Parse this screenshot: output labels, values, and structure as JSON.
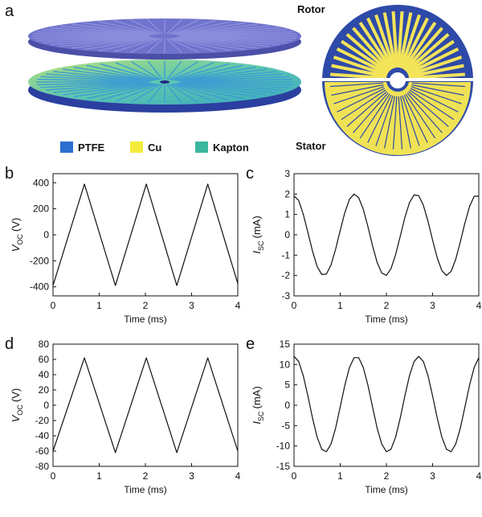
{
  "panel_a": {
    "label": "a",
    "legend": [
      "PTFE",
      "Cu",
      "Kapton"
    ],
    "rotor": "Rotor",
    "stator": "Stator"
  },
  "chart_data": [
    {
      "type": "line",
      "panel_label": "b",
      "xlabel": "Time (ms)",
      "ylabel": {
        "symbol": "V",
        "subscript": "OC",
        "unit": "(V)"
      },
      "color": "#111",
      "x": [
        0,
        0.68,
        1.35,
        2.02,
        2.68,
        3.35,
        4.0
      ],
      "values": [
        -390,
        390,
        -390,
        390,
        -390,
        390,
        -375
      ],
      "xlim": [
        0,
        4
      ],
      "xticks": [
        0,
        1,
        2,
        3,
        4
      ],
      "ylim": [
        -470,
        470
      ],
      "yticks": [
        -400,
        -200,
        0,
        200,
        400
      ]
    },
    {
      "type": "line",
      "panel_label": "c",
      "xlabel": "Time (ms)",
      "ylabel": {
        "symbol": "I",
        "subscript": "SC",
        "unit": "(mA)"
      },
      "color": "#111",
      "x": [
        0,
        0.1,
        0.2,
        0.3,
        0.4,
        0.5,
        0.6,
        0.7,
        0.8,
        0.9,
        1.0,
        1.1,
        1.2,
        1.3,
        1.4,
        1.5,
        1.6,
        1.7,
        1.8,
        1.9,
        2.0,
        2.1,
        2.2,
        2.3,
        2.4,
        2.5,
        2.6,
        2.7,
        2.8,
        2.9,
        3.0,
        3.1,
        3.2,
        3.3,
        3.4,
        3.5,
        3.6,
        3.7,
        3.8,
        3.9,
        4.0
      ],
      "values": [
        1.9,
        1.69,
        1.01,
        0.12,
        -0.8,
        -1.55,
        -1.95,
        -1.93,
        -1.49,
        -0.71,
        0.21,
        1.09,
        1.74,
        2.0,
        1.82,
        1.25,
        0.4,
        -0.54,
        -1.36,
        -1.88,
        -1.99,
        -1.66,
        -0.97,
        -0.07,
        0.85,
        1.58,
        1.96,
        1.92,
        1.45,
        0.67,
        -0.26,
        -1.13,
        -1.76,
        -2.0,
        -1.8,
        -1.21,
        -0.35,
        0.58,
        1.39,
        1.89,
        1.9
      ],
      "xlim": [
        0,
        4
      ],
      "xticks": [
        0,
        1,
        2,
        3,
        4
      ],
      "ylim": [
        -3,
        3
      ],
      "yticks": [
        -3,
        -2,
        -1,
        0,
        1,
        2,
        3
      ]
    },
    {
      "type": "line",
      "panel_label": "d",
      "xlabel": "Time (ms)",
      "ylabel": {
        "symbol": "V",
        "subscript": "OC",
        "unit": "(V)"
      },
      "color": "#111",
      "x": [
        0,
        0.68,
        1.35,
        2.02,
        2.68,
        3.35,
        4.0
      ],
      "values": [
        -60,
        62,
        -62,
        62,
        -62,
        62,
        -60
      ],
      "xlim": [
        0,
        4
      ],
      "xticks": [
        0,
        1,
        2,
        3,
        4
      ],
      "ylim": [
        -80,
        80
      ],
      "yticks": [
        -80,
        -60,
        -40,
        -20,
        0,
        20,
        40,
        60,
        80
      ]
    },
    {
      "type": "line",
      "panel_label": "e",
      "xlabel": "Time (ms)",
      "ylabel": {
        "symbol": "I",
        "subscript": "SC",
        "unit": "(mA)"
      },
      "color": "#111",
      "x": [
        0,
        0.1,
        0.2,
        0.3,
        0.4,
        0.5,
        0.6,
        0.7,
        0.8,
        0.9,
        1.0,
        1.1,
        1.2,
        1.3,
        1.4,
        1.5,
        1.6,
        1.7,
        1.8,
        1.9,
        2.0,
        2.1,
        2.2,
        2.3,
        2.4,
        2.5,
        2.6,
        2.7,
        2.8,
        2.9,
        3.0,
        3.1,
        3.2,
        3.3,
        3.4,
        3.5,
        3.6,
        3.7,
        3.8,
        3.9,
        4.0
      ],
      "values": [
        12,
        10.74,
        7.27,
        2.29,
        -3.12,
        -7.81,
        -10.79,
        -11.42,
        -9.56,
        -5.63,
        -0.43,
        4.9,
        9.25,
        11.68,
        11.68,
        9.25,
        4.9,
        -0.43,
        -5.63,
        -9.56,
        -11.42,
        -10.79,
        -7.81,
        -3.12,
        2.29,
        7.27,
        10.74,
        12,
        10.74,
        7.27,
        2.29,
        -3.12,
        -7.81,
        -10.79,
        -11.42,
        -9.56,
        -5.63,
        -0.43,
        4.9,
        9.25,
        11.68
      ],
      "xlim": [
        0,
        4
      ],
      "xticks": [
        0,
        1,
        2,
        3,
        4
      ],
      "ylim": [
        -15,
        15
      ],
      "yticks": [
        -15,
        -10,
        -5,
        0,
        5,
        10,
        15
      ]
    }
  ]
}
